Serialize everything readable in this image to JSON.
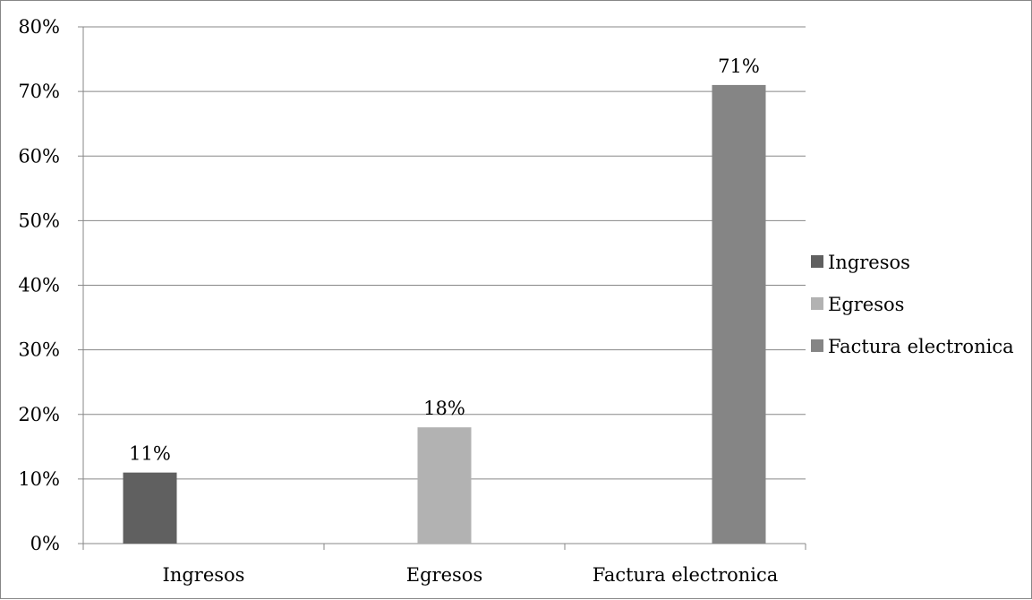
{
  "chart_data": {
    "type": "bar",
    "categories": [
      "Ingresos",
      "Egresos",
      "Factura electronica"
    ],
    "series": [
      {
        "name": "Ingresos",
        "values": [
          11,
          null,
          null
        ],
        "color": "#606060"
      },
      {
        "name": "Egresos",
        "values": [
          null,
          18,
          null
        ],
        "color": "#b2b2b2"
      },
      {
        "name": "Factura electronica",
        "values": [
          null,
          null,
          71
        ],
        "color": "#858585"
      }
    ],
    "data_labels": [
      "11%",
      "18%",
      "71%"
    ],
    "ylim": [
      0,
      80
    ],
    "yticks": [
      0,
      10,
      20,
      30,
      40,
      50,
      60,
      70,
      80
    ],
    "ytick_labels": [
      "0%",
      "10%",
      "20%",
      "30%",
      "40%",
      "50%",
      "60%",
      "70%",
      "80%"
    ],
    "title": "",
    "xlabel": "",
    "ylabel": "",
    "grid": true,
    "legend": {
      "position": "right",
      "entries": [
        "Ingresos",
        "Egresos",
        "Factura electronica"
      ]
    }
  }
}
